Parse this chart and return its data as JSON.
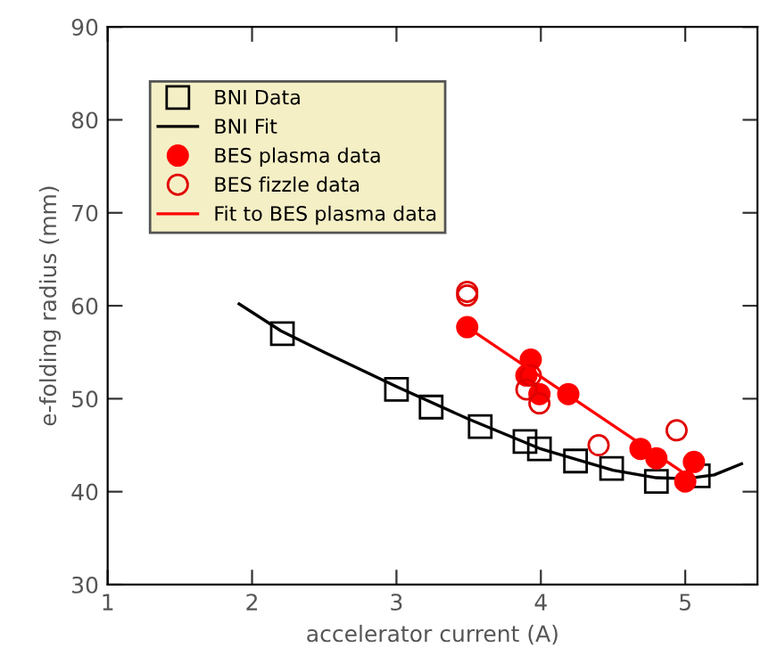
{
  "chart_data": {
    "type": "scatter",
    "xlabel": "accelerator current (A)",
    "ylabel": "e-folding radius (mm)",
    "xlim": [
      1,
      5.5
    ],
    "ylim": [
      30,
      90
    ],
    "xticks": [
      1,
      2,
      3,
      4,
      5
    ],
    "yticks": [
      30,
      40,
      50,
      60,
      70,
      80,
      90
    ],
    "grid": false,
    "legend": "top left",
    "series": [
      {
        "name": "BNI Data",
        "marker": "square",
        "color": "#000000",
        "x": [
          2.21,
          3.0,
          3.24,
          3.58,
          3.89,
          3.99,
          4.24,
          4.49,
          4.8,
          5.09
        ],
        "values": [
          57.0,
          51.0,
          49.1,
          47.0,
          45.4,
          44.6,
          43.3,
          42.5,
          41.1,
          41.7
        ]
      },
      {
        "name": "BNI Fit",
        "type": "line",
        "color": "#000000",
        "x": [
          1.91,
          2.2,
          2.5,
          3.0,
          3.5,
          4.0,
          4.5,
          4.8,
          5.0,
          5.2,
          5.39
        ],
        "values": [
          60.2,
          57.3,
          55.0,
          51.3,
          47.8,
          44.6,
          42.3,
          41.5,
          41.4,
          41.8,
          43.0
        ]
      },
      {
        "name": "BES plasma data",
        "marker": "circle",
        "color": "#ff0000",
        "x": [
          3.49,
          3.93,
          3.9,
          3.99,
          4.19,
          4.69,
          4.8,
          5.0,
          5.06
        ],
        "values": [
          57.7,
          54.2,
          52.5,
          50.5,
          50.5,
          44.6,
          43.6,
          41.1,
          43.2
        ]
      },
      {
        "name": "BES fizzle data",
        "marker": "circle",
        "color": "#e00000",
        "x": [
          3.49,
          3.49,
          3.93,
          3.9,
          3.99,
          4.4,
          4.94
        ],
        "values": [
          61.5,
          61.1,
          52.5,
          51.0,
          49.5,
          45.0,
          46.6
        ]
      },
      {
        "name": "Fit to BES plasma data",
        "type": "line",
        "color": "#ff0000",
        "x": [
          3.49,
          5.0
        ],
        "values": [
          57.7,
          41.9
        ]
      }
    ]
  }
}
